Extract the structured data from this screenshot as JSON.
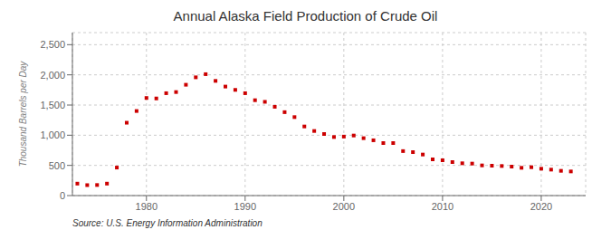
{
  "chart_data": {
    "type": "scatter",
    "title": "Annual Alaska Field Production of Crude Oil",
    "ylabel": "Thousand Barrels per Day",
    "source": "Source: U.S. Energy Information Administration",
    "color": "#cc0000",
    "marker": "square",
    "grid": true,
    "x": [
      1973,
      1974,
      1975,
      1976,
      1977,
      1978,
      1979,
      1980,
      1981,
      1982,
      1983,
      1984,
      1985,
      1986,
      1987,
      1988,
      1989,
      1990,
      1991,
      1992,
      1993,
      1994,
      1995,
      1996,
      1997,
      1998,
      1999,
      2000,
      2001,
      2002,
      2003,
      2004,
      2005,
      2006,
      2007,
      2008,
      2009,
      2010,
      2011,
      2012,
      2013,
      2014,
      2015,
      2016,
      2017,
      2018,
      2019,
      2020,
      2021,
      2022,
      2023
    ],
    "values": [
      198,
      173,
      175,
      198,
      464,
      1207,
      1401,
      1617,
      1609,
      1696,
      1715,
      1836,
      1959,
      2011,
      1900,
      1806,
      1751,
      1696,
      1580,
      1553,
      1471,
      1382,
      1300,
      1145,
      1070,
      1020,
      970,
      977,
      995,
      951,
      916,
      870,
      870,
      737,
      720,
      680,
      600,
      585,
      555,
      535,
      530,
      500,
      495,
      490,
      480,
      460,
      470,
      445,
      430,
      410,
      400
    ],
    "xlim": [
      1972.5,
      2024.5
    ],
    "xticks": [
      1980,
      1990,
      2000,
      2010,
      2020
    ],
    "ylim": [
      0,
      2700
    ],
    "yticks": [
      0,
      500,
      {
        "value": 1000,
        "label": "1,000"
      },
      {
        "value": 1500,
        "label": "1,500"
      },
      {
        "value": 2000,
        "label": "2,000"
      },
      {
        "value": 2500,
        "label": "2,500"
      }
    ]
  }
}
